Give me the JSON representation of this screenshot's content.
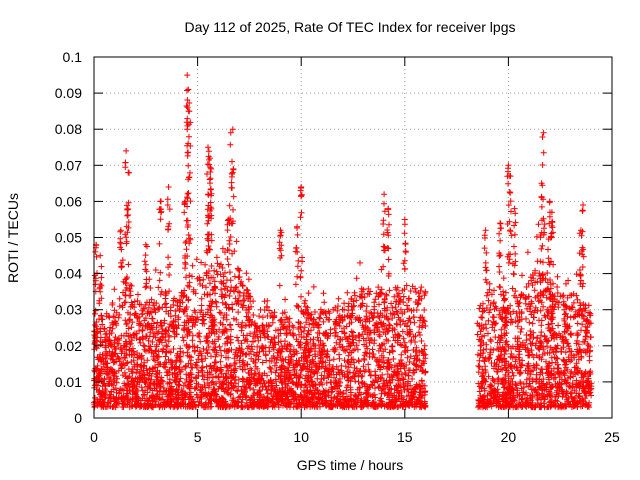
{
  "chart_data": {
    "type": "scatter",
    "title": "Day 112 of 2025, Rate Of TEC Index for receiver lpgs",
    "xlabel": "GPS time / hours",
    "ylabel": "ROTI / TECUs",
    "xlim": [
      0,
      25
    ],
    "ylim": [
      0,
      0.1
    ],
    "grid": true,
    "marker": "+",
    "series_color": "#ff0000",
    "xticks": [
      0,
      5,
      10,
      15,
      20,
      25
    ],
    "xtick_labels": [
      "0",
      "5",
      "10",
      "15",
      "20",
      "25"
    ],
    "yticks": [
      0,
      0.01,
      0.02,
      0.03,
      0.04,
      0.05,
      0.06,
      0.07,
      0.08,
      0.09,
      0.1
    ],
    "ytick_labels": [
      "0",
      "0.01",
      "0.02",
      "0.03",
      "0.04",
      "0.05",
      "0.06",
      "0.07",
      "0.08",
      "0.09",
      "0.1"
    ],
    "data_gap_hours": [
      16.2,
      18.3
    ],
    "envelope": {
      "hours": [
        0.0,
        0.5,
        1.0,
        1.5,
        2.0,
        2.5,
        3.0,
        3.5,
        4.0,
        4.5,
        5.0,
        5.5,
        6.0,
        6.5,
        7.0,
        7.5,
        8.0,
        8.5,
        9.0,
        9.5,
        10.0,
        10.5,
        11.0,
        11.5,
        12.0,
        12.5,
        13.0,
        13.5,
        14.0,
        14.5,
        15.0,
        15.5,
        16.0,
        18.5,
        19.0,
        19.5,
        20.0,
        20.5,
        21.0,
        21.5,
        22.0,
        22.5,
        23.0,
        23.5,
        24.0
      ],
      "typical_max": [
        0.032,
        0.028,
        0.03,
        0.04,
        0.035,
        0.032,
        0.034,
        0.036,
        0.033,
        0.04,
        0.045,
        0.042,
        0.045,
        0.038,
        0.042,
        0.034,
        0.03,
        0.032,
        0.028,
        0.03,
        0.034,
        0.03,
        0.03,
        0.03,
        0.032,
        0.035,
        0.036,
        0.036,
        0.038,
        0.036,
        0.038,
        0.036,
        0.035,
        0.032,
        0.036,
        0.035,
        0.036,
        0.036,
        0.038,
        0.045,
        0.04,
        0.036,
        0.035,
        0.034,
        0.032
      ]
    },
    "peaks": [
      {
        "x": 0.1,
        "y": 0.048
      },
      {
        "x": 0.3,
        "y": 0.045
      },
      {
        "x": 1.3,
        "y": 0.052
      },
      {
        "x": 1.55,
        "y": 0.074
      },
      {
        "x": 1.65,
        "y": 0.068
      },
      {
        "x": 2.5,
        "y": 0.048
      },
      {
        "x": 3.2,
        "y": 0.06
      },
      {
        "x": 3.6,
        "y": 0.064
      },
      {
        "x": 4.4,
        "y": 0.06
      },
      {
        "x": 4.5,
        "y": 0.095
      },
      {
        "x": 4.55,
        "y": 0.091
      },
      {
        "x": 4.6,
        "y": 0.085
      },
      {
        "x": 4.5,
        "y": 0.08
      },
      {
        "x": 5.5,
        "y": 0.075
      },
      {
        "x": 5.6,
        "y": 0.072
      },
      {
        "x": 5.65,
        "y": 0.069
      },
      {
        "x": 5.5,
        "y": 0.062
      },
      {
        "x": 6.6,
        "y": 0.079
      },
      {
        "x": 6.7,
        "y": 0.08
      },
      {
        "x": 6.5,
        "y": 0.055
      },
      {
        "x": 9.0,
        "y": 0.052
      },
      {
        "x": 9.8,
        "y": 0.053
      },
      {
        "x": 10.0,
        "y": 0.064
      },
      {
        "x": 14.0,
        "y": 0.062
      },
      {
        "x": 14.2,
        "y": 0.058
      },
      {
        "x": 15.0,
        "y": 0.055
      },
      {
        "x": 18.9,
        "y": 0.052
      },
      {
        "x": 19.6,
        "y": 0.054
      },
      {
        "x": 20.0,
        "y": 0.07
      },
      {
        "x": 20.1,
        "y": 0.067
      },
      {
        "x": 20.3,
        "y": 0.058
      },
      {
        "x": 21.6,
        "y": 0.065
      },
      {
        "x": 21.7,
        "y": 0.079
      },
      {
        "x": 22.0,
        "y": 0.06
      },
      {
        "x": 22.1,
        "y": 0.057
      },
      {
        "x": 23.6,
        "y": 0.059
      },
      {
        "x": 23.5,
        "y": 0.052
      }
    ]
  }
}
